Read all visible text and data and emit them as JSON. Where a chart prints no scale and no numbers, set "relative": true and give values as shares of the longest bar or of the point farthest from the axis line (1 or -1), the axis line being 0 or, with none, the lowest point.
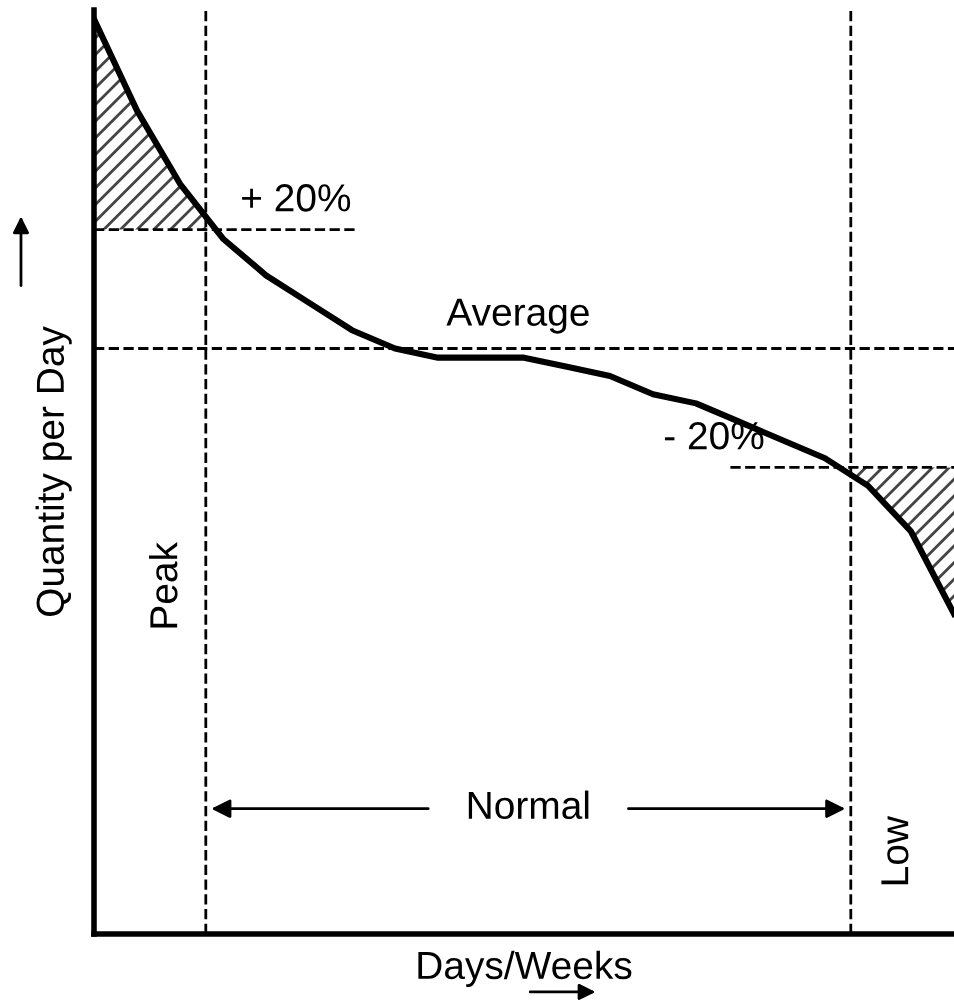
{
  "chart_data": {
    "type": "line",
    "relative": true,
    "xlabel": "Days/Weeks",
    "ylabel": "Quantity per Day",
    "categories": [
      null,
      null,
      null,
      null,
      null,
      null,
      null,
      null,
      null,
      null,
      null,
      null,
      null,
      null,
      null,
      null,
      null,
      null,
      null,
      null,
      null
    ],
    "series": [
      {
        "color": "#000000",
        "values": [
          1.0,
          0.9,
          0.82,
          0.76,
          0.72,
          0.69,
          0.66,
          0.64,
          0.63,
          0.63,
          0.63,
          0.62,
          0.61,
          0.59,
          0.58,
          0.56,
          0.54,
          0.52,
          0.49,
          0.44,
          0.35
        ]
      }
    ],
    "ref_lines": [
      {
        "axis": "y",
        "value": 0.64,
        "label": "Average",
        "line_style": "dashed",
        "color": "#000000"
      },
      {
        "axis": "y",
        "value": 0.77,
        "line_style": "dashed",
        "color": "#000000"
      },
      {
        "axis": "y",
        "value": 0.51,
        "line_style": "dashed",
        "color": "#000000"
      }
    ],
    "annotations": [
      "+ 20%",
      "- 20%",
      "Peak",
      "Normal",
      "Low"
    ],
    "legend": false,
    "marker": "none",
    "line_style": "solid"
  }
}
